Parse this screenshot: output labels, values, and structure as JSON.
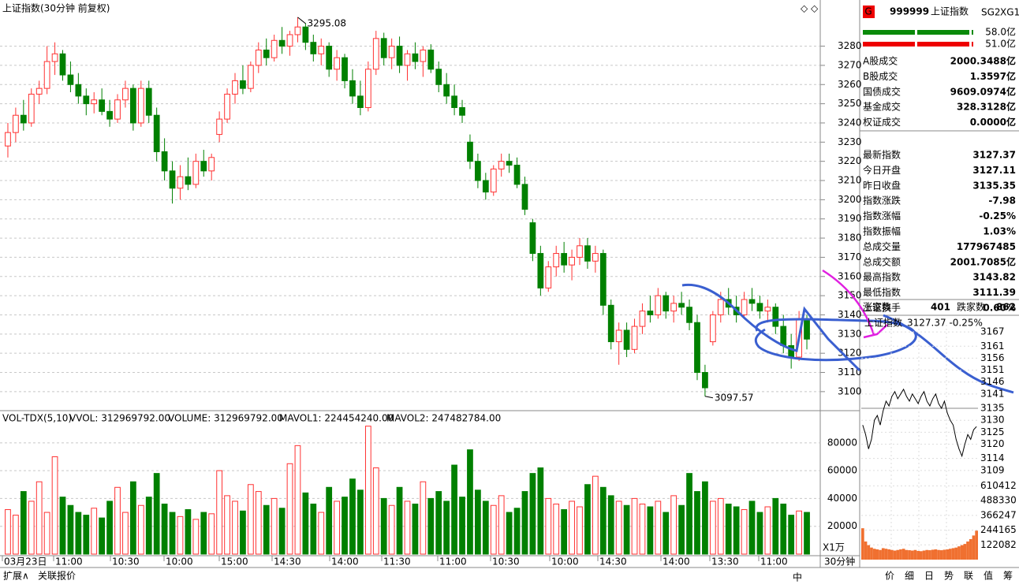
{
  "chart_data": {
    "type": "candlestick",
    "title": "上证指数(30分钟 前复权)",
    "period": "30分钟",
    "candles": [
      [
        3228,
        3240,
        3222,
        3235
      ],
      [
        3235,
        3248,
        3230,
        3244
      ],
      [
        3244,
        3252,
        3236,
        3240
      ],
      [
        3240,
        3258,
        3238,
        3255
      ],
      [
        3255,
        3262,
        3250,
        3258
      ],
      [
        3258,
        3280,
        3255,
        3272
      ],
      [
        3272,
        3282,
        3265,
        3276
      ],
      [
        3276,
        3278,
        3262,
        3265
      ],
      [
        3265,
        3272,
        3256,
        3260
      ],
      [
        3260,
        3266,
        3250,
        3254
      ],
      [
        3254,
        3258,
        3244,
        3250
      ],
      [
        3250,
        3256,
        3245,
        3252
      ],
      [
        3252,
        3258,
        3244,
        3246
      ],
      [
        3246,
        3252,
        3238,
        3242
      ],
      [
        3242,
        3255,
        3240,
        3252
      ],
      [
        3252,
        3262,
        3248,
        3258
      ],
      [
        3258,
        3260,
        3236,
        3240
      ],
      [
        3240,
        3262,
        3238,
        3258
      ],
      [
        3258,
        3262,
        3240,
        3244
      ],
      [
        3244,
        3248,
        3220,
        3225
      ],
      [
        3225,
        3232,
        3210,
        3215
      ],
      [
        3215,
        3220,
        3198,
        3206
      ],
      [
        3206,
        3218,
        3200,
        3212
      ],
      [
        3212,
        3222,
        3205,
        3208
      ],
      [
        3208,
        3224,
        3206,
        3220
      ],
      [
        3220,
        3226,
        3212,
        3215
      ],
      [
        3215,
        3224,
        3210,
        3222
      ],
      [
        3234,
        3246,
        3230,
        3242
      ],
      [
        3242,
        3258,
        3240,
        3255
      ],
      [
        3255,
        3266,
        3250,
        3262
      ],
      [
        3262,
        3270,
        3255,
        3258
      ],
      [
        3258,
        3272,
        3256,
        3270
      ],
      [
        3270,
        3282,
        3266,
        3278
      ],
      [
        3278,
        3284,
        3270,
        3274
      ],
      [
        3274,
        3286,
        3272,
        3283
      ],
      [
        3283,
        3290,
        3276,
        3280
      ],
      [
        3280,
        3288,
        3275,
        3286
      ],
      [
        3286,
        3295.08,
        3282,
        3290
      ],
      [
        3290,
        3292,
        3278,
        3282
      ],
      [
        3282,
        3286,
        3272,
        3276
      ],
      [
        3276,
        3284,
        3270,
        3280
      ],
      [
        3280,
        3282,
        3264,
        3268
      ],
      [
        3268,
        3278,
        3262,
        3274
      ],
      [
        3274,
        3276,
        3258,
        3262
      ],
      [
        3262,
        3268,
        3250,
        3254
      ],
      [
        3254,
        3262,
        3244,
        3248
      ],
      [
        3248,
        3272,
        3246,
        3268
      ],
      [
        3268,
        3288,
        3265,
        3284
      ],
      [
        3284,
        3287,
        3270,
        3274
      ],
      [
        3274,
        3284,
        3268,
        3280
      ],
      [
        3280,
        3285,
        3266,
        3270
      ],
      [
        3270,
        3278,
        3262,
        3276
      ],
      [
        3276,
        3282,
        3268,
        3272
      ],
      [
        3272,
        3280,
        3264,
        3278
      ],
      [
        3278,
        3281,
        3266,
        3268
      ],
      [
        3268,
        3272,
        3256,
        3260
      ],
      [
        3260,
        3266,
        3250,
        3254
      ],
      [
        3254,
        3260,
        3244,
        3248
      ],
      [
        3248,
        3252,
        3240,
        3244
      ],
      [
        3230,
        3234,
        3216,
        3220
      ],
      [
        3220,
        3224,
        3206,
        3210
      ],
      [
        3210,
        3214,
        3200,
        3204
      ],
      [
        3204,
        3218,
        3202,
        3216
      ],
      [
        3216,
        3224,
        3212,
        3220
      ],
      [
        3220,
        3224,
        3214,
        3218
      ],
      [
        3218,
        3222,
        3206,
        3208
      ],
      [
        3208,
        3212,
        3192,
        3195
      ],
      [
        3188,
        3190,
        3168,
        3172
      ],
      [
        3172,
        3176,
        3150,
        3154
      ],
      [
        3154,
        3168,
        3152,
        3165
      ],
      [
        3165,
        3176,
        3160,
        3172
      ],
      [
        3172,
        3178,
        3162,
        3166
      ],
      [
        3166,
        3174,
        3158,
        3170
      ],
      [
        3170,
        3180,
        3166,
        3176
      ],
      [
        3176,
        3180,
        3164,
        3168
      ],
      [
        3168,
        3176,
        3162,
        3172
      ],
      [
        3172,
        3174,
        3140,
        3145
      ],
      [
        3145,
        3148,
        3122,
        3126
      ],
      [
        3126,
        3136,
        3114,
        3132
      ],
      [
        3132,
        3136,
        3118,
        3122
      ],
      [
        3122,
        3138,
        3120,
        3134
      ],
      [
        3134,
        3146,
        3130,
        3142
      ],
      [
        3142,
        3150,
        3136,
        3140
      ],
      [
        3140,
        3154,
        3138,
        3150
      ],
      [
        3150,
        3152,
        3138,
        3142
      ],
      [
        3142,
        3150,
        3136,
        3146
      ],
      [
        3146,
        3152,
        3140,
        3144
      ],
      [
        3144,
        3148,
        3132,
        3136
      ],
      [
        3136,
        3140,
        3106,
        3110
      ],
      [
        3110,
        3114,
        3097.57,
        3102
      ],
      [
        3126,
        3142,
        3124,
        3140
      ],
      [
        3140,
        3152,
        3136,
        3148
      ],
      [
        3148,
        3154,
        3140,
        3144
      ],
      [
        3144,
        3150,
        3136,
        3140
      ],
      [
        3140,
        3152,
        3138,
        3148
      ],
      [
        3148,
        3154,
        3142,
        3146
      ],
      [
        3146,
        3150,
        3138,
        3142
      ],
      [
        3142,
        3148,
        3136,
        3144
      ],
      [
        3144,
        3146,
        3130,
        3134
      ],
      [
        3134,
        3140,
        3120,
        3124
      ],
      [
        3124,
        3130,
        3112,
        3118
      ],
      [
        3118,
        3142,
        3116,
        3138
      ],
      [
        3138,
        3140,
        3122,
        3127.37
      ]
    ],
    "ylim": [
      3090.5,
      3302
    ],
    "yticks": [
      3100,
      3110,
      3120,
      3130,
      3140,
      3150,
      3160,
      3170,
      3180,
      3190,
      3200,
      3210,
      3220,
      3230,
      3240,
      3250,
      3260,
      3270,
      3280
    ],
    "grid": true,
    "up_color": "#ff3232",
    "down_color": "#008000",
    "xtick_labels": [
      "03月23日",
      "11:00",
      "10:30",
      "10:00",
      "15:00",
      "14:30",
      "14:00",
      "11:30",
      "11:00",
      "10:30",
      "10:00",
      "14:30",
      "14:00",
      "13:30",
      "11:00"
    ],
    "volume": {
      "header": [
        "VOL-TDX(5,10)",
        "VVOL: 312969792.00",
        "VOLUME: 312969792.00",
        "MAVOL1: 224454240.00",
        "MAVOL2: 247482784.00"
      ],
      "values": [
        32000,
        28000,
        45000,
        38000,
        52000,
        30000,
        70000,
        41000,
        35000,
        30000,
        28000,
        33000,
        26000,
        38000,
        48000,
        30000,
        52000,
        35000,
        41000,
        58000,
        36000,
        30000,
        27000,
        32000,
        25000,
        30000,
        29000,
        60000,
        42000,
        38000,
        31000,
        50000,
        45000,
        35000,
        40000,
        33000,
        65000,
        78000,
        44000,
        36000,
        30000,
        48000,
        38000,
        41000,
        54000,
        46000,
        92000,
        62000,
        40000,
        35000,
        48000,
        38000,
        36000,
        52000,
        40000,
        45000,
        38000,
        64000,
        41000,
        75000,
        46000,
        38000,
        35000,
        42000,
        30000,
        33000,
        45000,
        58000,
        62000,
        40000,
        36000,
        32000,
        38000,
        34000,
        50000,
        56000,
        48000,
        42000,
        38000,
        35000,
        40000,
        36000,
        34000,
        38000,
        30000,
        42000,
        35000,
        58000,
        45000,
        52000,
        38000,
        40000,
        36000,
        34000,
        32000,
        38000,
        30000,
        34000,
        40000,
        36000,
        28000,
        31000,
        30000
      ],
      "ylim": [
        0,
        102000
      ],
      "yticks": [
        20000,
        40000,
        60000,
        80000
      ],
      "unit": "X1万"
    }
  },
  "quote_panel": {
    "badge": "G",
    "code": "999999",
    "name": "上证指数",
    "tags": [
      "SG2",
      "XG1"
    ],
    "flow": [
      "58.0亿",
      "51.0亿"
    ],
    "rows": [
      {
        "label": "A股成交",
        "value": "2000.3488亿",
        "color": "#c04000"
      },
      {
        "label": "B股成交",
        "value": "1.3597亿",
        "color": "#c04000"
      },
      {
        "label": "国债成交",
        "value": "9609.0974亿",
        "color": "#c04000"
      },
      {
        "label": "基金成交",
        "value": "328.3128亿",
        "color": "#c04000"
      },
      {
        "label": "权证成交",
        "value": "0.0000亿",
        "color": "#c04000"
      },
      {
        "label": "最新指数",
        "value": "3127.37",
        "color": "#008000"
      },
      {
        "label": "今日开盘",
        "value": "3127.11",
        "color": "#008000"
      },
      {
        "label": "昨日收盘",
        "value": "3135.35",
        "color": "#000000"
      },
      {
        "label": "指数涨跌",
        "value": "-7.98",
        "color": "#008000"
      },
      {
        "label": "指数涨幅",
        "value": "-0.25%",
        "color": "#008000"
      },
      {
        "label": "指数振幅",
        "value": "1.03%",
        "color": "#000000"
      },
      {
        "label": "总成交量",
        "value": "177967485",
        "color": "#e00000"
      },
      {
        "label": "总成交额",
        "value": "2001.7085亿",
        "color": "#c04000"
      },
      {
        "label": "最高指数",
        "value": "3143.82",
        "color": "#e00000"
      },
      {
        "label": "最低指数",
        "value": "3111.39",
        "color": "#008000"
      },
      {
        "label": "上证换手",
        "value": "0.60%",
        "color": "#000000"
      }
    ],
    "breadth": [
      "涨家数",
      "401",
      "跌家数",
      "862"
    ]
  },
  "mini_chart": {
    "type": "line",
    "header": [
      "上证指数",
      "3127.37 -0.25%"
    ],
    "values": [
      3128,
      3124,
      3118,
      3122,
      3130,
      3132,
      3128,
      3134,
      3138,
      3136,
      3140,
      3142,
      3139,
      3141,
      3143,
      3140,
      3138,
      3141,
      3139,
      3137,
      3140,
      3142,
      3138,
      3136,
      3139,
      3141,
      3137,
      3135,
      3138,
      3133,
      3130,
      3128,
      3122,
      3118,
      3115,
      3120,
      3124,
      3122,
      3126,
      3127.37
    ],
    "ylim": [
      3106.3,
      3170
    ],
    "yticks": [
      3109,
      3114,
      3120,
      3125,
      3130,
      3135,
      3141,
      3146,
      3151,
      3156,
      3161,
      3167
    ],
    "base": 3135,
    "volume": [
      260000,
      150000,
      120000,
      100000,
      90000,
      85000,
      80000,
      95000,
      90000,
      85000,
      80000,
      75000,
      80000,
      85000,
      90000,
      80000,
      78000,
      75000,
      80000,
      72000,
      70000,
      75000,
      80000,
      78000,
      82000,
      85000,
      80000,
      78000,
      82000,
      85000,
      90000,
      95000,
      100000,
      110000,
      120000,
      130000,
      150000,
      170000,
      200000,
      240000
    ],
    "volume_ylim": [
      0,
      640000
    ],
    "volume_yticks": [
      122082,
      244165,
      366247,
      488330,
      610412
    ]
  },
  "tabs": {
    "left": [
      "扩展∧",
      "关联报价"
    ],
    "right": [
      "价",
      "细",
      "日",
      "势",
      "联",
      "值",
      "筹"
    ],
    "active": "势",
    "toolbar": "中"
  }
}
